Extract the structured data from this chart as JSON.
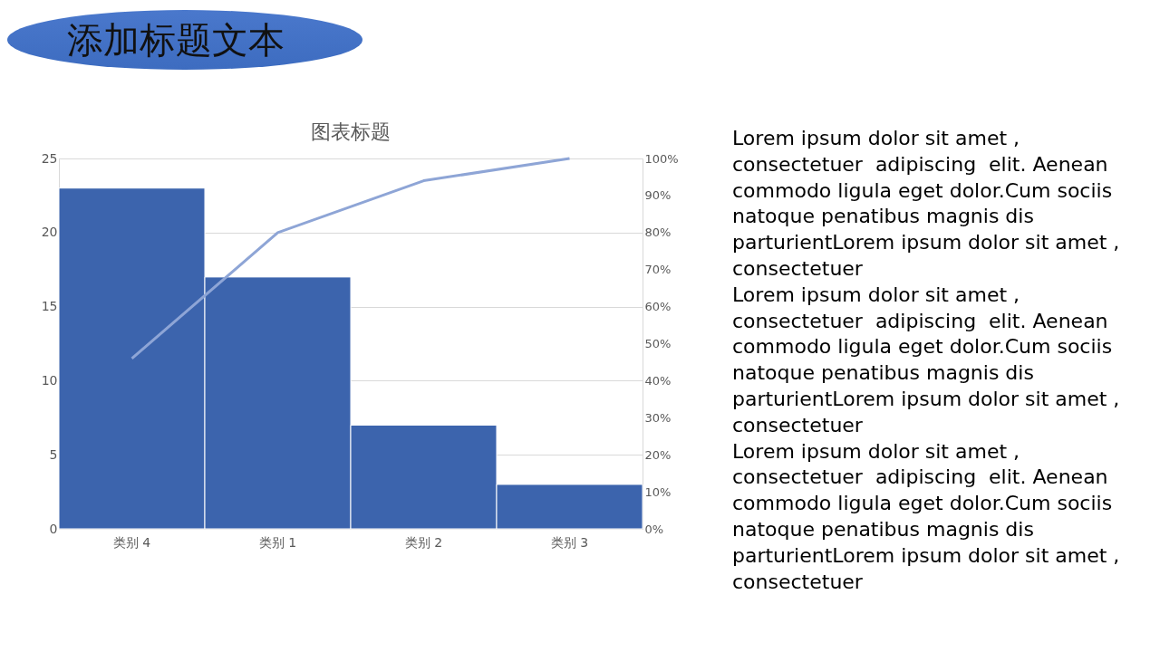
{
  "chart_data": {
    "type": "bar",
    "title": "添加标题文本",
    "subtitle": "图表标题",
    "categories": [
      "类别 4",
      "类别 1",
      "类别 2",
      "类别 3"
    ],
    "series": [
      {
        "color": "#3c64ad",
        "values": [
          23,
          17,
          7,
          3
        ]
      },
      {
        "type": "line",
        "axis": "y2",
        "color": "#8ea5d6",
        "values": [
          46,
          80,
          94,
          100
        ]
      }
    ],
    "ylim": [
      0,
      25
    ],
    "yticks": [
      0,
      5,
      10,
      15,
      20,
      25
    ],
    "y2lim": [
      0,
      100
    ],
    "y2ticks": [
      {
        "value": 0,
        "label": "0%"
      },
      {
        "value": 10,
        "label": "10%"
      },
      {
        "value": 20,
        "label": "20%"
      },
      {
        "value": 30,
        "label": "30%"
      },
      {
        "value": 40,
        "label": "40%"
      },
      {
        "value": 50,
        "label": "50%"
      },
      {
        "value": 60,
        "label": "60%"
      },
      {
        "value": 70,
        "label": "70%"
      },
      {
        "value": 80,
        "label": "80%"
      },
      {
        "value": 90,
        "label": "90%"
      },
      {
        "value": 100,
        "label": "100%"
      }
    ],
    "grid": "y",
    "annotations": [
      "Lorem ipsum dolor sit amet , consectetuer  adipiscing  elit. Aenean commodo ligula eget dolor.Cum sociis natoque penatibus magnis dis parturientLorem ipsum dolor sit amet , consectetuer",
      "Lorem ipsum dolor sit amet , consectetuer  adipiscing  elit. Aenean commodo ligula eget dolor.Cum sociis natoque penatibus magnis dis parturientLorem ipsum dolor sit amet , consectetuer",
      "Lorem ipsum dolor sit amet , consectetuer  adipiscing  elit. Aenean commodo ligula eget dolor.Cum sociis natoque penatibus magnis dis parturientLorem ipsum dolor sit amet , consectetuer"
    ]
  }
}
